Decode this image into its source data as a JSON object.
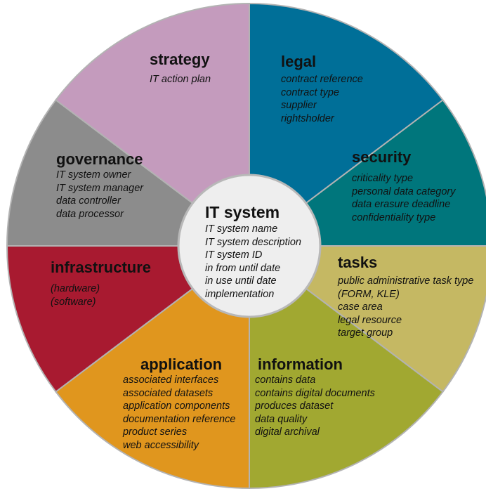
{
  "diagram": {
    "center": {
      "title": "IT system",
      "items": [
        "IT system name",
        "IT system description",
        "IT system ID",
        "in from until date",
        "in use until date",
        "implementation"
      ]
    },
    "segments": [
      {
        "key": "strategy",
        "title": "strategy",
        "color": "#c49bbd",
        "items": [
          "IT action plan"
        ]
      },
      {
        "key": "legal",
        "title": "legal",
        "color": "#006f98",
        "items": [
          "contract reference",
          "contract type",
          "supplier",
          "rightsholder"
        ]
      },
      {
        "key": "security",
        "title": "security",
        "color": "#00767c",
        "items": [
          "criticality type",
          "personal data category",
          "data erasure deadline",
          "confidentiality type"
        ]
      },
      {
        "key": "tasks",
        "title": "tasks",
        "color": "#c5b863",
        "items": [
          "public administrative task type",
          "(FORM, KLE)",
          "case area",
          "legal resource",
          "target group"
        ]
      },
      {
        "key": "information",
        "title": "information",
        "color": "#a1a831",
        "items": [
          "contains data",
          "contains digital documents",
          "produces dataset",
          "data quality",
          "digital archival"
        ]
      },
      {
        "key": "application",
        "title": "application",
        "color": "#e0961e",
        "items": [
          "associated interfaces",
          "associated datasets",
          "application components",
          "documentation reference",
          "product series",
          "web accessibility"
        ]
      },
      {
        "key": "infrastructure",
        "title": "infrastructure",
        "color": "#a81a30",
        "items": [
          "(hardware)",
          "(software)"
        ]
      },
      {
        "key": "governance",
        "title": "governance",
        "color": "#8c8c8c",
        "items": [
          "IT system owner",
          "IT system manager",
          "data controller",
          "data processor"
        ]
      }
    ]
  }
}
